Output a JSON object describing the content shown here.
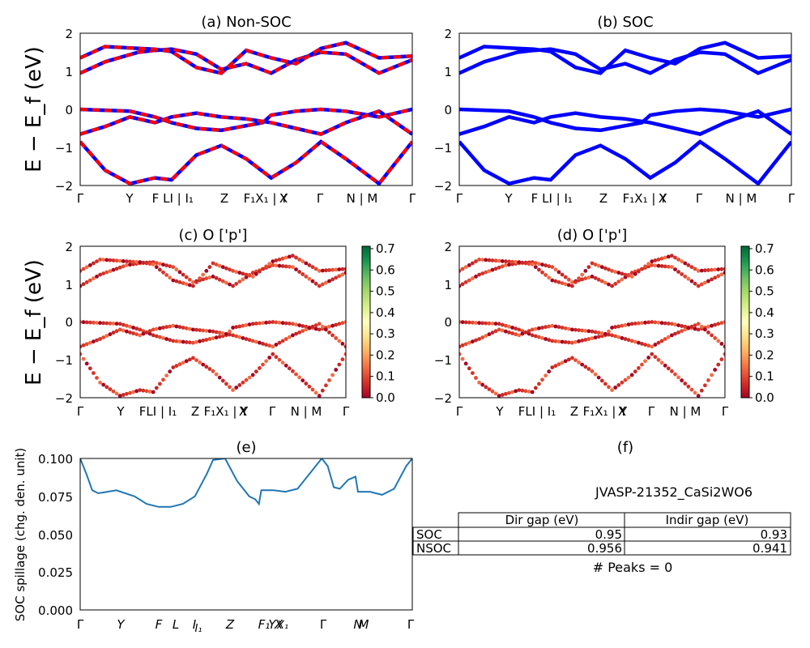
{
  "colors": {
    "nonsoc_primary": "#0000ff",
    "nonsoc_dashed": "#ff0000",
    "soc_line": "#0000ff",
    "spillage_line": "#1f77b4",
    "colormap": "RdYlGn"
  },
  "band_panels": {
    "ylabel": "E − E_f (eV)",
    "ylim": [
      -2,
      2
    ],
    "yticks": [
      "2",
      "1",
      "0",
      "−1",
      "−2"
    ],
    "kpath_labels": [
      "Γ",
      "Y",
      "F",
      "L",
      "I | I₁",
      "Z",
      "F₁",
      "X₁ | Y",
      "X",
      "Γ",
      "N | M",
      "Γ"
    ],
    "ab_kpath_labels": [
      "Γ",
      "Y",
      "F",
      "LI | I₁",
      "Z",
      "F₁X₁ | Y",
      "X",
      "Γ",
      "N | M",
      "Γ"
    ],
    "cd_kpath_labels": [
      "Γ",
      "Y",
      "FLI | I₁",
      "Z",
      "F₁X₁ | Y",
      "X",
      "Γ",
      "N | M",
      "Γ"
    ]
  },
  "colorbar": {
    "ticks": [
      "0.7",
      "0.6",
      "0.5",
      "0.4",
      "0.3",
      "0.2",
      "0.1",
      "0.0"
    ]
  },
  "spillage_panel": {
    "ylabel": "SOC spillage (chg. den. unit)",
    "yticks": [
      "0.100",
      "0.075",
      "0.050",
      "0.025",
      "0.000"
    ],
    "xticks": [
      "Γ",
      "Y",
      "F",
      "L",
      "I",
      "I₁",
      "Z",
      "F₁",
      "Y",
      "X",
      "X₁",
      "Γ",
      "N",
      "M",
      "Γ"
    ]
  },
  "info_panel": {
    "title": "(f)",
    "material": "JVASP-21352_CaSi2WO6",
    "table": {
      "headers": [
        "",
        "Dir gap (eV)",
        "Indir gap (eV)"
      ],
      "rows": [
        [
          "SOC",
          "0.95",
          "0.93"
        ],
        [
          "NSOC",
          "0.956",
          "0.941"
        ]
      ]
    },
    "peaks": "# Peaks = 0"
  },
  "chart_data": [
    {
      "type": "line",
      "title": "(a) Non-SOC",
      "xlabel": "",
      "ylabel": "E − E_f (eV)",
      "ylim": [
        -2,
        2
      ],
      "x_ticks": [
        "Γ",
        "Y",
        "F",
        "LI | I₁",
        "Z",
        "F₁X₁ | Y",
        "X",
        "Γ",
        "N | M",
        "Γ"
      ],
      "series": [
        {
          "values": [
            [
              0,
              0.95
            ],
            [
              0.15,
              1.25
            ],
            [
              0.35,
              1.5
            ],
            [
              0.45,
              1.55
            ],
            [
              0.55,
              1.58
            ],
            [
              0.7,
              1.45
            ],
            [
              0.85,
              1.05
            ],
            [
              1.0,
              1.2
            ],
            [
              1.15,
              0.95
            ],
            [
              1.3,
              1.3
            ],
            [
              1.45,
              1.5
            ],
            [
              1.6,
              1.45
            ],
            [
              1.8,
              0.95
            ],
            [
              2.0,
              1.3
            ]
          ]
        },
        {
          "values": [
            [
              0,
              1.35
            ],
            [
              0.15,
              1.65
            ],
            [
              0.35,
              1.6
            ],
            [
              0.45,
              1.58
            ],
            [
              0.55,
              1.52
            ],
            [
              0.7,
              1.1
            ],
            [
              0.85,
              0.95
            ],
            [
              1.0,
              1.55
            ],
            [
              1.15,
              1.35
            ],
            [
              1.3,
              1.2
            ],
            [
              1.45,
              1.6
            ],
            [
              1.6,
              1.75
            ],
            [
              1.8,
              1.35
            ],
            [
              2.0,
              1.4
            ]
          ]
        },
        {
          "values": [
            [
              0,
              0.0
            ],
            [
              0.3,
              -0.05
            ],
            [
              0.45,
              -0.2
            ],
            [
              0.55,
              -0.35
            ],
            [
              0.7,
              -0.5
            ],
            [
              0.85,
              -0.55
            ],
            [
              1.1,
              -0.35
            ],
            [
              1.15,
              -0.15
            ],
            [
              1.3,
              -0.05
            ],
            [
              1.45,
              0.0
            ],
            [
              1.6,
              -0.05
            ],
            [
              1.8,
              -0.2
            ],
            [
              2.0,
              0.0
            ]
          ]
        },
        {
          "values": [
            [
              0,
              -0.65
            ],
            [
              0.15,
              -0.45
            ],
            [
              0.3,
              -0.2
            ],
            [
              0.45,
              -0.35
            ],
            [
              0.55,
              -0.2
            ],
            [
              0.7,
              -0.1
            ],
            [
              0.85,
              -0.2
            ],
            [
              1.0,
              -0.25
            ],
            [
              1.15,
              -0.35
            ],
            [
              1.3,
              -0.5
            ],
            [
              1.45,
              -0.65
            ],
            [
              1.6,
              -0.35
            ],
            [
              1.8,
              -0.05
            ],
            [
              2.0,
              -0.65
            ]
          ]
        },
        {
          "values": [
            [
              0,
              -0.85
            ],
            [
              0.15,
              -1.6
            ],
            [
              0.3,
              -1.95
            ],
            [
              0.45,
              -1.8
            ],
            [
              0.55,
              -1.85
            ],
            [
              0.7,
              -1.2
            ],
            [
              0.85,
              -0.95
            ],
            [
              1.0,
              -1.3
            ],
            [
              1.15,
              -1.8
            ],
            [
              1.3,
              -1.4
            ],
            [
              1.45,
              -0.85
            ],
            [
              1.6,
              -1.3
            ],
            [
              1.8,
              -1.95
            ],
            [
              2.0,
              -0.85
            ]
          ]
        }
      ]
    },
    {
      "type": "line",
      "title": "(b) SOC",
      "xlabel": "",
      "ylabel": "",
      "ylim": [
        -2,
        2
      ],
      "x_ticks": [
        "Γ",
        "Y",
        "F",
        "LI | I₁",
        "Z",
        "F₁X₁ | Y",
        "X",
        "Γ",
        "N | M",
        "Γ"
      ],
      "series": [
        {
          "values": [
            [
              0,
              0.95
            ],
            [
              0.15,
              1.25
            ],
            [
              0.35,
              1.5
            ],
            [
              0.45,
              1.55
            ],
            [
              0.55,
              1.58
            ],
            [
              0.7,
              1.45
            ],
            [
              0.85,
              1.05
            ],
            [
              1.0,
              1.2
            ],
            [
              1.15,
              0.95
            ],
            [
              1.3,
              1.3
            ],
            [
              1.45,
              1.5
            ],
            [
              1.6,
              1.45
            ],
            [
              1.8,
              0.95
            ],
            [
              2.0,
              1.3
            ]
          ]
        },
        {
          "values": [
            [
              0,
              1.35
            ],
            [
              0.15,
              1.65
            ],
            [
              0.35,
              1.6
            ],
            [
              0.45,
              1.58
            ],
            [
              0.55,
              1.52
            ],
            [
              0.7,
              1.1
            ],
            [
              0.85,
              0.95
            ],
            [
              1.0,
              1.55
            ],
            [
              1.15,
              1.35
            ],
            [
              1.3,
              1.2
            ],
            [
              1.45,
              1.6
            ],
            [
              1.6,
              1.75
            ],
            [
              1.8,
              1.35
            ],
            [
              2.0,
              1.4
            ]
          ]
        },
        {
          "values": [
            [
              0,
              0.0
            ],
            [
              0.3,
              -0.05
            ],
            [
              0.45,
              -0.2
            ],
            [
              0.55,
              -0.35
            ],
            [
              0.7,
              -0.5
            ],
            [
              0.85,
              -0.55
            ],
            [
              1.1,
              -0.35
            ],
            [
              1.15,
              -0.15
            ],
            [
              1.3,
              -0.05
            ],
            [
              1.45,
              0.0
            ],
            [
              1.6,
              -0.05
            ],
            [
              1.8,
              -0.2
            ],
            [
              2.0,
              0.0
            ]
          ]
        },
        {
          "values": [
            [
              0,
              -0.65
            ],
            [
              0.15,
              -0.45
            ],
            [
              0.3,
              -0.2
            ],
            [
              0.45,
              -0.35
            ],
            [
              0.55,
              -0.2
            ],
            [
              0.7,
              -0.1
            ],
            [
              0.85,
              -0.2
            ],
            [
              1.0,
              -0.25
            ],
            [
              1.15,
              -0.35
            ],
            [
              1.3,
              -0.5
            ],
            [
              1.45,
              -0.65
            ],
            [
              1.6,
              -0.35
            ],
            [
              1.8,
              -0.05
            ],
            [
              2.0,
              -0.65
            ]
          ]
        },
        {
          "values": [
            [
              0,
              -0.85
            ],
            [
              0.15,
              -1.6
            ],
            [
              0.3,
              -1.95
            ],
            [
              0.45,
              -1.8
            ],
            [
              0.55,
              -1.85
            ],
            [
              0.7,
              -1.2
            ],
            [
              0.85,
              -0.95
            ],
            [
              1.0,
              -1.3
            ],
            [
              1.15,
              -1.8
            ],
            [
              1.3,
              -1.4
            ],
            [
              1.45,
              -0.85
            ],
            [
              1.6,
              -1.3
            ],
            [
              1.8,
              -1.95
            ],
            [
              2.0,
              -0.85
            ]
          ]
        }
      ]
    },
    {
      "type": "scatter",
      "title": "(c)  O ['p']",
      "xlabel": "",
      "ylabel": "E − E_f (eV)",
      "ylim": [
        -2,
        2
      ],
      "x_ticks": [
        "Γ",
        "Y",
        "FLI | I₁",
        "Z",
        "F₁X₁ | Y",
        "X",
        "Γ",
        "N | M",
        "Γ"
      ],
      "colorbar": {
        "min": 0.0,
        "max": 0.7
      }
    },
    {
      "type": "scatter",
      "title": "(d) O ['p']",
      "xlabel": "",
      "ylabel": "",
      "ylim": [
        -2,
        2
      ],
      "x_ticks": [
        "Γ",
        "Y",
        "FLI | I₁",
        "Z",
        "F₁X₁ | Y",
        "X",
        "Γ",
        "N | M",
        "Γ"
      ],
      "colorbar": {
        "min": 0.0,
        "max": 0.7
      }
    },
    {
      "type": "line",
      "title": "(e)",
      "xlabel": "",
      "ylabel": "SOC spillage (chg. den. unit)",
      "ylim": [
        0,
        0.1
      ],
      "x_ticks": [
        "Γ",
        "Y",
        "F",
        "L",
        "I",
        "I₁",
        "Z",
        "F₁",
        "Y",
        "X",
        "X₁",
        "Γ",
        "N",
        "M",
        "Γ"
      ],
      "values": [
        [
          0,
          0.1
        ],
        [
          0.05,
          0.09
        ],
        [
          0.1,
          0.079
        ],
        [
          0.15,
          0.077
        ],
        [
          0.3,
          0.079
        ],
        [
          0.45,
          0.075
        ],
        [
          0.55,
          0.07
        ],
        [
          0.65,
          0.068
        ],
        [
          0.75,
          0.068
        ],
        [
          0.85,
          0.07
        ],
        [
          0.95,
          0.075
        ],
        [
          1.05,
          0.09
        ],
        [
          1.1,
          0.099
        ],
        [
          1.2,
          0.1
        ],
        [
          1.3,
          0.085
        ],
        [
          1.4,
          0.075
        ],
        [
          1.45,
          0.073
        ],
        [
          1.48,
          0.07
        ],
        [
          1.5,
          0.079
        ],
        [
          1.6,
          0.079
        ],
        [
          1.7,
          0.078
        ],
        [
          1.8,
          0.08
        ],
        [
          1.9,
          0.09
        ],
        [
          2.0,
          0.1
        ],
        [
          2.05,
          0.095
        ],
        [
          2.1,
          0.081
        ],
        [
          2.15,
          0.08
        ],
        [
          2.22,
          0.086
        ],
        [
          2.28,
          0.088
        ],
        [
          2.3,
          0.078
        ],
        [
          2.4,
          0.078
        ],
        [
          2.5,
          0.076
        ],
        [
          2.6,
          0.08
        ],
        [
          2.7,
          0.095
        ],
        [
          2.75,
          0.1
        ]
      ]
    }
  ]
}
